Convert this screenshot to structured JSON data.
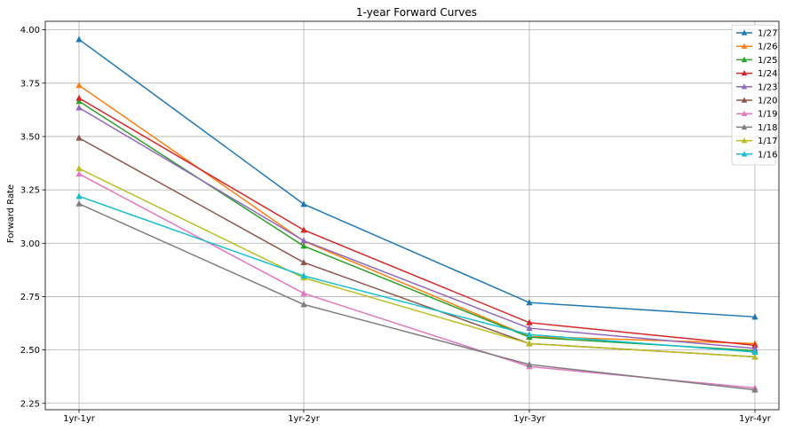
{
  "chart_data": {
    "type": "line",
    "title": "1-year Forward Curves",
    "xlabel": "",
    "ylabel": "Forward Rate",
    "categories": [
      "1yr-1yr",
      "1yr-2yr",
      "1yr-3yr",
      "1yr-4yr"
    ],
    "ylim": [
      2.22,
      4.04
    ],
    "yticks": [
      "2.25",
      "2.50",
      "2.75",
      "3.00",
      "3.25",
      "3.50",
      "3.75",
      "4.00"
    ],
    "grid": true,
    "legend_position": "top-right",
    "marker": "triangle",
    "series": [
      {
        "name": "1/27",
        "color": "#1f77b4",
        "values": [
          3.955,
          3.183,
          2.722,
          2.655
        ]
      },
      {
        "name": "1/26",
        "color": "#ff7f0e",
        "values": [
          3.74,
          3.01,
          2.563,
          2.53
        ]
      },
      {
        "name": "1/25",
        "color": "#2ca02c",
        "values": [
          3.665,
          2.987,
          2.56,
          2.497
        ]
      },
      {
        "name": "1/24",
        "color": "#d62728",
        "values": [
          3.68,
          3.062,
          2.628,
          2.522
        ]
      },
      {
        "name": "1/23",
        "color": "#9467bd",
        "values": [
          3.635,
          3.012,
          2.602,
          2.507
        ]
      },
      {
        "name": "1/20",
        "color": "#8c564b",
        "values": [
          3.493,
          2.91,
          2.53,
          2.468
        ]
      },
      {
        "name": "1/19",
        "color": "#e377c2",
        "values": [
          3.325,
          2.765,
          2.422,
          2.322
        ]
      },
      {
        "name": "1/18",
        "color": "#7f7f7f",
        "values": [
          3.185,
          2.713,
          2.432,
          2.313
        ]
      },
      {
        "name": "1/17",
        "color": "#bcbd22",
        "values": [
          3.35,
          2.838,
          2.53,
          2.468
        ]
      },
      {
        "name": "1/16",
        "color": "#17becf",
        "values": [
          3.22,
          2.847,
          2.572,
          2.49
        ]
      }
    ]
  }
}
